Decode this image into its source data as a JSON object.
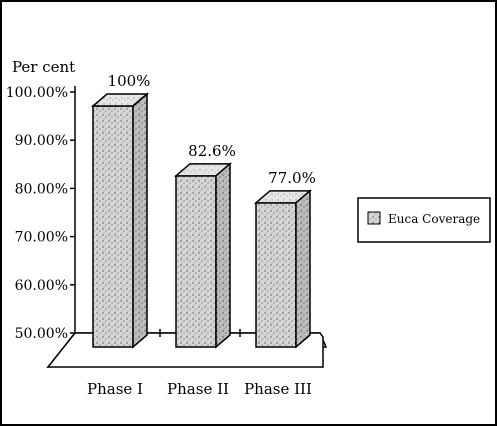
{
  "chart_data": {
    "type": "bar",
    "title": "",
    "ylabel": "Per cent",
    "xlabel": "",
    "ylim": [
      50,
      100
    ],
    "yticks": [
      "50.00%",
      "60.00%",
      "70.00%",
      "80.00%",
      "90.00%",
      "100.00%"
    ],
    "categories": [
      "Phase I",
      "Phase II",
      "Phase III"
    ],
    "series": [
      {
        "name": "Euca Coverage",
        "values": [
          100,
          82.6,
          77.0
        ]
      }
    ],
    "data_labels": [
      "100%",
      "82.6%",
      "77.0%"
    ],
    "legend_position": "right",
    "grid": false,
    "style": "3d",
    "colors": {
      "bar": "#cfcfcf",
      "axis": "#000000"
    }
  }
}
